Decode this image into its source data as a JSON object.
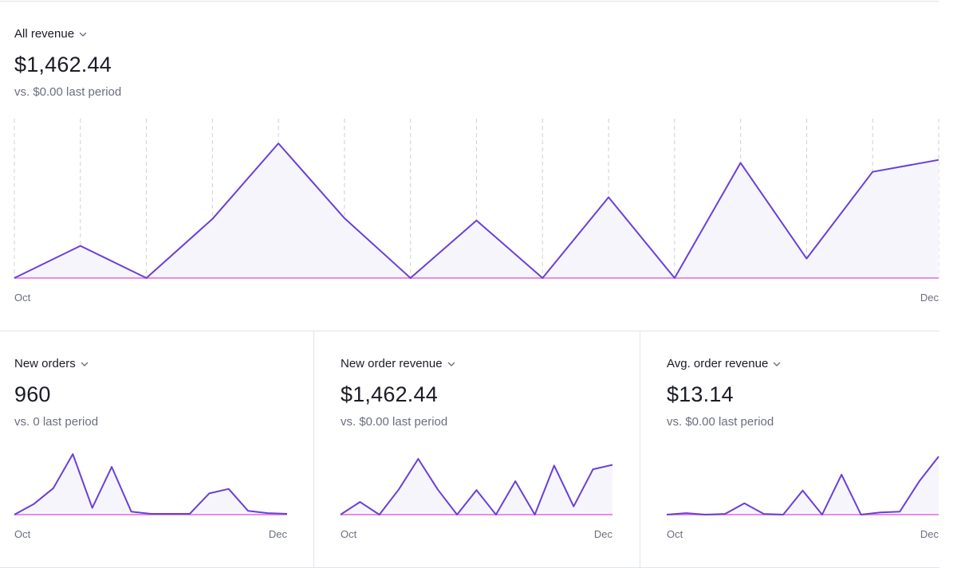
{
  "colors": {
    "line": "#6a3fd8",
    "area": "#f7f5fc",
    "baseline": "#e58de8",
    "grid": "#cfd0d6",
    "divider": "#e3e4e8",
    "muted": "#6b6f7d"
  },
  "icons": {
    "dropdown": "chevron-down-icon"
  },
  "main": {
    "label": "All revenue",
    "value": "$1,462.44",
    "compare": "vs. $0.00 last period"
  },
  "cards": [
    {
      "label": "New orders",
      "value": "960",
      "compare": "vs. 0 last period"
    },
    {
      "label": "New order revenue",
      "value": "$1,462.44",
      "compare": "vs. $0.00 last period"
    },
    {
      "label": "Avg. order revenue",
      "value": "$13.14",
      "compare": "vs. $0.00 last period"
    }
  ],
  "chart_data": [
    {
      "type": "area",
      "title": "All revenue",
      "x_start_label": "Oct",
      "x_end_label": "Dec",
      "gridlines": "vertical-dashed",
      "ylim": [
        0,
        180
      ],
      "values": [
        0,
        43,
        0,
        79,
        180,
        80,
        0,
        77,
        0,
        108,
        0,
        154,
        26,
        142,
        158
      ]
    },
    {
      "type": "area",
      "title": "New orders",
      "x_start_label": "Oct",
      "x_end_label": "Dec",
      "ylim": [
        0,
        80
      ],
      "values": [
        0,
        14,
        35,
        80,
        9,
        63,
        4,
        1,
        1,
        1,
        28,
        34,
        5,
        2,
        1
      ]
    },
    {
      "type": "area",
      "title": "New order revenue",
      "x_start_label": "Oct",
      "x_end_label": "Dec",
      "ylim": [
        0,
        75
      ],
      "values": [
        0,
        17,
        0,
        34,
        75,
        34,
        0,
        33,
        0,
        45,
        0,
        66,
        11,
        61,
        67
      ]
    },
    {
      "type": "area",
      "title": "Avg. order revenue",
      "x_start_label": "Oct",
      "x_end_label": "Dec",
      "ylim": [
        0,
        77
      ],
      "values": [
        0,
        2,
        0,
        1,
        15,
        1,
        0,
        32,
        0,
        53,
        0,
        3,
        4,
        44,
        77
      ]
    }
  ]
}
